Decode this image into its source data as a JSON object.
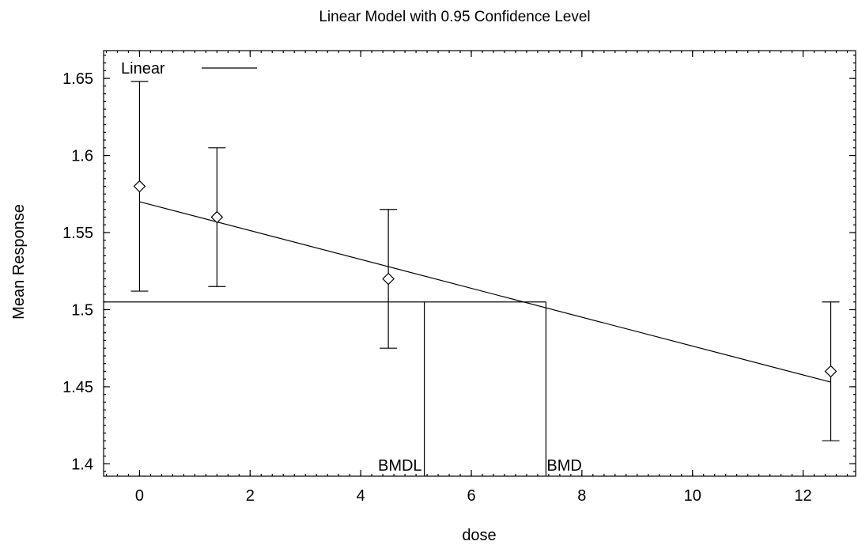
{
  "chart_data": {
    "type": "line",
    "title": "Linear Model with 0.95 Confidence Level",
    "xlabel": "dose",
    "ylabel": "Mean Response",
    "xlim": [
      -0.65,
      12.95
    ],
    "ylim": [
      1.392,
      1.668
    ],
    "x_ticks": [
      0,
      2,
      4,
      6,
      8,
      10,
      12
    ],
    "y_ticks": [
      1.4,
      1.45,
      1.5,
      1.55,
      1.6,
      1.65
    ],
    "y_tick_labels": [
      "1.4",
      "1.45",
      "1.5",
      "1.55",
      "1.6",
      "1.65"
    ],
    "legend": {
      "position": "top-left",
      "entries": [
        {
          "label": "Linear",
          "style": "solid line"
        }
      ]
    },
    "series": [
      {
        "name": "Linear",
        "kind": "fitted-line",
        "x": [
          0,
          12.5
        ],
        "y": [
          1.57,
          1.453
        ]
      }
    ],
    "observations": {
      "marker": "diamond",
      "x": [
        0,
        1.4,
        4.5,
        12.5
      ],
      "mean": [
        1.58,
        1.56,
        1.52,
        1.46
      ],
      "lower": [
        1.512,
        1.515,
        1.475,
        1.415
      ],
      "upper": [
        1.648,
        1.605,
        1.565,
        1.505
      ]
    },
    "bmr_level": 1.505,
    "annotations": [
      {
        "label": "BMDL",
        "x": 5.15
      },
      {
        "label": "BMD",
        "x": 7.35
      }
    ]
  }
}
